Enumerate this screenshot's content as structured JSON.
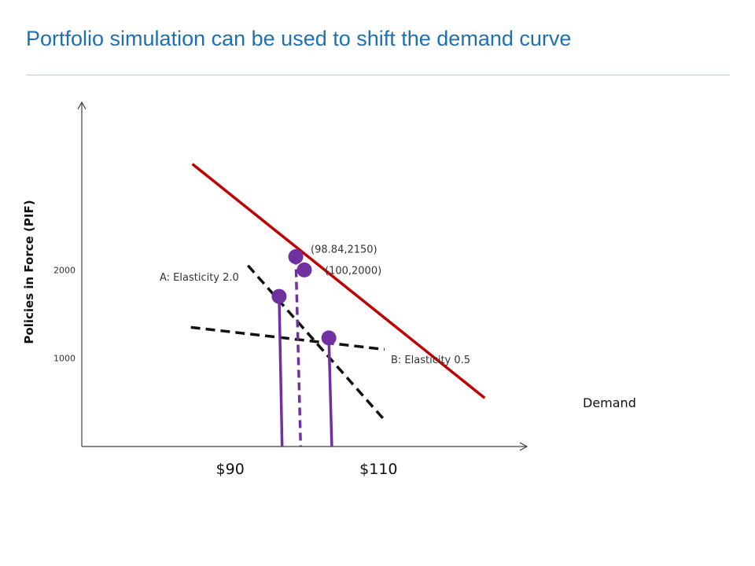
{
  "title": "Portfolio simulation can be used to shift the demand curve",
  "chart_data": {
    "type": "line",
    "title": "Portfolio simulation can be used to shift the demand curve",
    "xlabel": "",
    "ylabel": "Policies in Force (PIF)",
    "xlim": [
      70,
      130
    ],
    "ylim": [
      0,
      3900
    ],
    "y_ticks": [
      {
        "value": 1000,
        "label": "1000"
      },
      {
        "value": 2000,
        "label": "2000"
      }
    ],
    "x_ticks": [
      {
        "value": 90,
        "label": "$90"
      },
      {
        "value": 110,
        "label": "$110"
      }
    ],
    "grid": false,
    "colors": {
      "demand": "#c00000",
      "points": "#7030a0",
      "elasticity_lines": "#111111",
      "axes": "#404040"
    },
    "series": [
      {
        "name": "Demand",
        "style": "solid",
        "x": [
          84.9,
          124.3
        ],
        "y": [
          3200,
          550
        ]
      },
      {
        "name": "A: Elasticity 2.0",
        "style": "dashed",
        "x": [
          92.4,
          110.8
        ],
        "y": [
          2050,
          300
        ]
      },
      {
        "name": "B: Elasticity 0.5",
        "style": "dashed",
        "x": [
          84.7,
          110.8
        ],
        "y": [
          1350,
          1100
        ]
      }
    ],
    "points": [
      {
        "x": 98.84,
        "y": 2150,
        "label": "(98.84,2150)"
      },
      {
        "x": 100,
        "y": 2000,
        "label": "(100,2000)"
      },
      {
        "x": 96.6,
        "y": 1700,
        "label": ""
      },
      {
        "x": 103.3,
        "y": 1230,
        "label": ""
      }
    ],
    "drop_lines": [
      {
        "style": "dashed",
        "x_top": 98.84,
        "y_top": 2150,
        "x_bottom": 99.5
      },
      {
        "style": "solid",
        "x_top": 96.6,
        "y_top": 1700,
        "x_bottom": 97.0
      },
      {
        "style": "solid",
        "x_top": 103.3,
        "y_top": 1230,
        "x_bottom": 103.7
      }
    ]
  }
}
